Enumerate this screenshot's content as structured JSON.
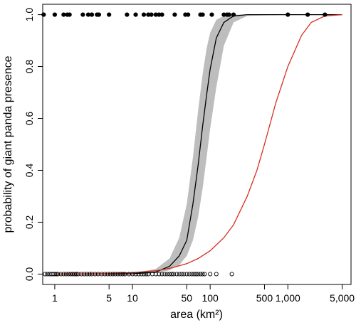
{
  "chart_data": {
    "type": "line",
    "title": "",
    "xlabel": "area (km²)",
    "ylabel": "probability of giant panda presence",
    "x_scale": "log",
    "xlim": [
      0.7,
      6500
    ],
    "ylim": [
      -0.04,
      1.04
    ],
    "x_ticks": [
      1,
      5,
      10,
      50,
      100,
      500,
      1000,
      5000
    ],
    "x_tick_labels": [
      "1",
      "5",
      "10",
      "50",
      "100",
      "500",
      "1,000",
      "5,000"
    ],
    "y_ticks": [
      0,
      0.2,
      0.4,
      0.6,
      0.8,
      1
    ],
    "y_tick_labels": [
      "0.0",
      "0.2",
      "0.4",
      "0.6",
      "0.8",
      "1.0"
    ],
    "grid": false,
    "legend": "none",
    "series": [
      {
        "style": "line",
        "color": "#000000",
        "x": [
          1,
          5,
          10,
          20,
          30,
          40,
          50,
          60,
          70,
          80,
          90,
          100,
          120,
          150,
          200,
          300,
          1000,
          5000
        ],
        "y": [
          0.0,
          0.0,
          0.001,
          0.008,
          0.03,
          0.07,
          0.13,
          0.27,
          0.42,
          0.57,
          0.69,
          0.79,
          0.91,
          0.97,
          0.995,
          1.0,
          1.0,
          1.0
        ],
        "band_lower": [
          0.0,
          0.0,
          0.0,
          0.004,
          0.015,
          0.035,
          0.07,
          0.13,
          0.22,
          0.33,
          0.45,
          0.56,
          0.72,
          0.88,
          0.97,
          0.995,
          1.0,
          1.0
        ],
        "band_upper": [
          0.0,
          0.001,
          0.003,
          0.02,
          0.06,
          0.14,
          0.27,
          0.45,
          0.63,
          0.77,
          0.87,
          0.93,
          0.98,
          0.995,
          1.0,
          1.0,
          1.0,
          1.0
        ],
        "band_color": "#bdbdbd"
      },
      {
        "style": "line",
        "color": "#d62d20",
        "x": [
          1,
          5,
          10,
          20,
          30,
          50,
          70,
          100,
          150,
          200,
          300,
          400,
          500,
          700,
          1000,
          1500,
          2000,
          3000,
          5000
        ],
        "y": [
          0.0,
          0.002,
          0.005,
          0.013,
          0.022,
          0.04,
          0.06,
          0.09,
          0.14,
          0.19,
          0.3,
          0.4,
          0.5,
          0.66,
          0.8,
          0.92,
          0.97,
          0.995,
          1.0
        ]
      }
    ],
    "points_present": {
      "style": "filled-circle",
      "y": 1,
      "x": [
        0.72,
        1,
        1.3,
        1.45,
        1.55,
        2.3,
        2.7,
        3.0,
        3.5,
        3.7,
        5.0,
        8.5,
        11,
        14,
        16,
        17.5,
        20,
        22,
        24,
        35,
        48,
        52,
        75,
        80,
        105,
        150,
        165,
        175,
        200,
        1000,
        1800,
        3000
      ]
    },
    "points_absent": {
      "style": "open-circle",
      "y": 0,
      "x": [
        0.75,
        0.8,
        0.85,
        0.9,
        0.95,
        1.0,
        1.05,
        1.1,
        1.2,
        1.3,
        1.4,
        1.5,
        1.6,
        1.7,
        1.8,
        1.9,
        2.0,
        2.2,
        2.4,
        2.6,
        2.8,
        3.0,
        3.3,
        3.6,
        4.0,
        4.4,
        4.8,
        5.2,
        5.6,
        6.0,
        6.5,
        7.0,
        7.5,
        8.0,
        9.0,
        10,
        11,
        12,
        13,
        14,
        15,
        16,
        18,
        20,
        22,
        24,
        26,
        28,
        30,
        32,
        34,
        37,
        40,
        43,
        46,
        50,
        54,
        58,
        62,
        66,
        70,
        75,
        80,
        85,
        100,
        120,
        190
      ]
    }
  }
}
